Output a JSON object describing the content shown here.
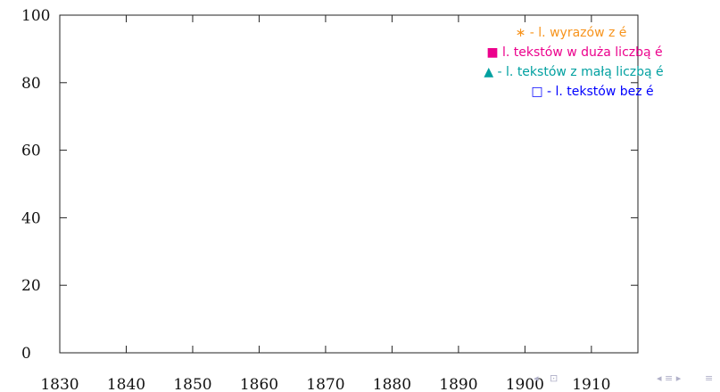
{
  "chart_data": {
    "type": "scatter",
    "title": "",
    "xlabel": "",
    "ylabel": "",
    "xlim": [
      1830,
      1917
    ],
    "ylim": [
      0,
      100
    ],
    "x_ticks": [
      1830,
      1840,
      1850,
      1860,
      1870,
      1880,
      1890,
      1900,
      1910
    ],
    "y_ticks": [
      0,
      20,
      40,
      60,
      80,
      100
    ],
    "grid": false,
    "legend_position": "top-right",
    "series": [
      {
        "name": "∗ - l. wyrazów z é",
        "marker": "asterisk",
        "color": "#f7941d",
        "points": []
      },
      {
        "name": "■ l. tekstów w duża liczbą é",
        "marker": "filled-square",
        "color": "#ec008c",
        "points": []
      },
      {
        "name": "▲ - l. tekstów z małą liczbą é",
        "marker": "filled-triangle",
        "color": "#00a0a0",
        "points": []
      },
      {
        "name": "□ - l. tekstów bez é",
        "marker": "open-square",
        "color": "#0000ff",
        "points": []
      }
    ]
  },
  "nav_icons": [
    "left-arrow-icon",
    "frame-icon",
    "right-arrow-icon",
    "menu-icon"
  ]
}
